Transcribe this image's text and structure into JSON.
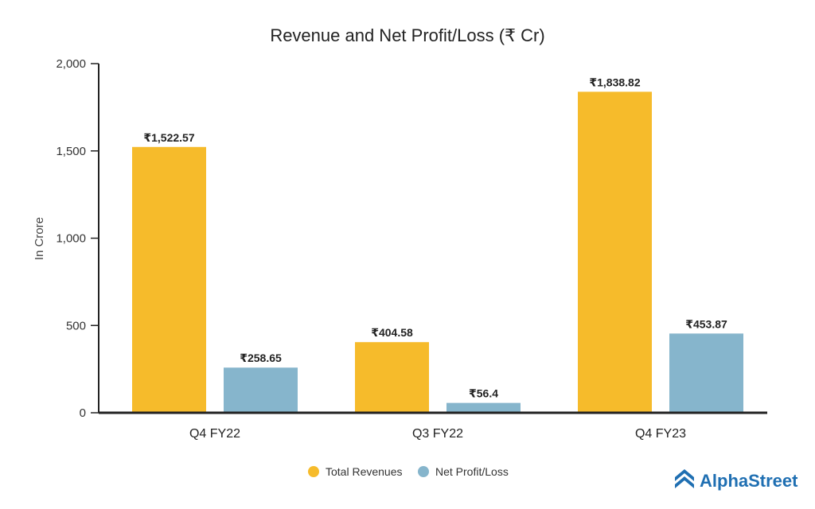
{
  "chart_data": {
    "type": "bar",
    "title": "Revenue and Net Profit/Loss (₹ Cr)",
    "xlabel": "",
    "ylabel": "In Crore",
    "categories": [
      "Q4 FY22",
      "Q3 FY22",
      "Q4 FY23"
    ],
    "ylim": [
      0,
      2000
    ],
    "yticks": [
      0,
      500,
      1000,
      1500,
      2000
    ],
    "ytick_labels": [
      "0",
      "500",
      "1,000",
      "1,500",
      "2,000"
    ],
    "grid": false,
    "legend_position": "bottom-center",
    "series": [
      {
        "name": "Total Revenues",
        "color": "#f6bb2b",
        "values": [
          1522.57,
          404.58,
          1838.82
        ],
        "labels": [
          "₹1,522.57",
          "₹404.58",
          "₹1,838.82"
        ]
      },
      {
        "name": "Net Profit/Loss",
        "color": "#86b5cc",
        "values": [
          258.65,
          56.4,
          453.87
        ],
        "labels": [
          "₹258.65",
          "₹56.4",
          "₹453.87"
        ]
      }
    ]
  },
  "brand": {
    "name": "AlphaStreet",
    "color": "#1f6fb2",
    "icon": "alphastreet-logo-icon"
  },
  "colors": {
    "axis": "#222222"
  }
}
